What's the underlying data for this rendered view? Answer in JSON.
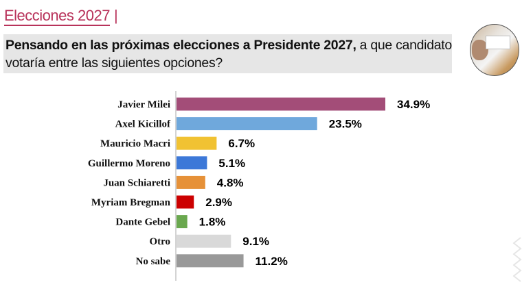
{
  "header": {
    "brand": "Elecciones 2027",
    "separator": "|"
  },
  "question": {
    "bold": "Pensando en las próximas elecciones a Presidente 2027,",
    "rest": " a que candidato votaría entre las siguientes opciones?"
  },
  "photo_icon": "ballot-box-photo",
  "chart_data": {
    "type": "bar",
    "orientation": "horizontal",
    "categories": [
      "Javier Milei",
      "Axel Kicillof",
      "Mauricio Macri",
      "Guillermo Moreno",
      "Juan Schiaretti",
      "Myriam Bregman",
      "Dante Gebel",
      "Otro",
      "No sabe"
    ],
    "values": [
      34.9,
      23.5,
      6.7,
      5.1,
      4.8,
      2.9,
      1.8,
      9.1,
      11.2
    ],
    "labels": [
      "34.9%",
      "23.5%",
      "6.7%",
      "5.1%",
      "4.8%",
      "2.9%",
      "1.8%",
      "9.1%",
      "11.2%"
    ],
    "colors": [
      "#a34d78",
      "#6fa8dc",
      "#f1c232",
      "#3c78d8",
      "#e69138",
      "#cc0000",
      "#6aa84f",
      "#d9d9d9",
      "#999999"
    ],
    "unit": "%",
    "grid": false,
    "xaxis_visible": false
  }
}
